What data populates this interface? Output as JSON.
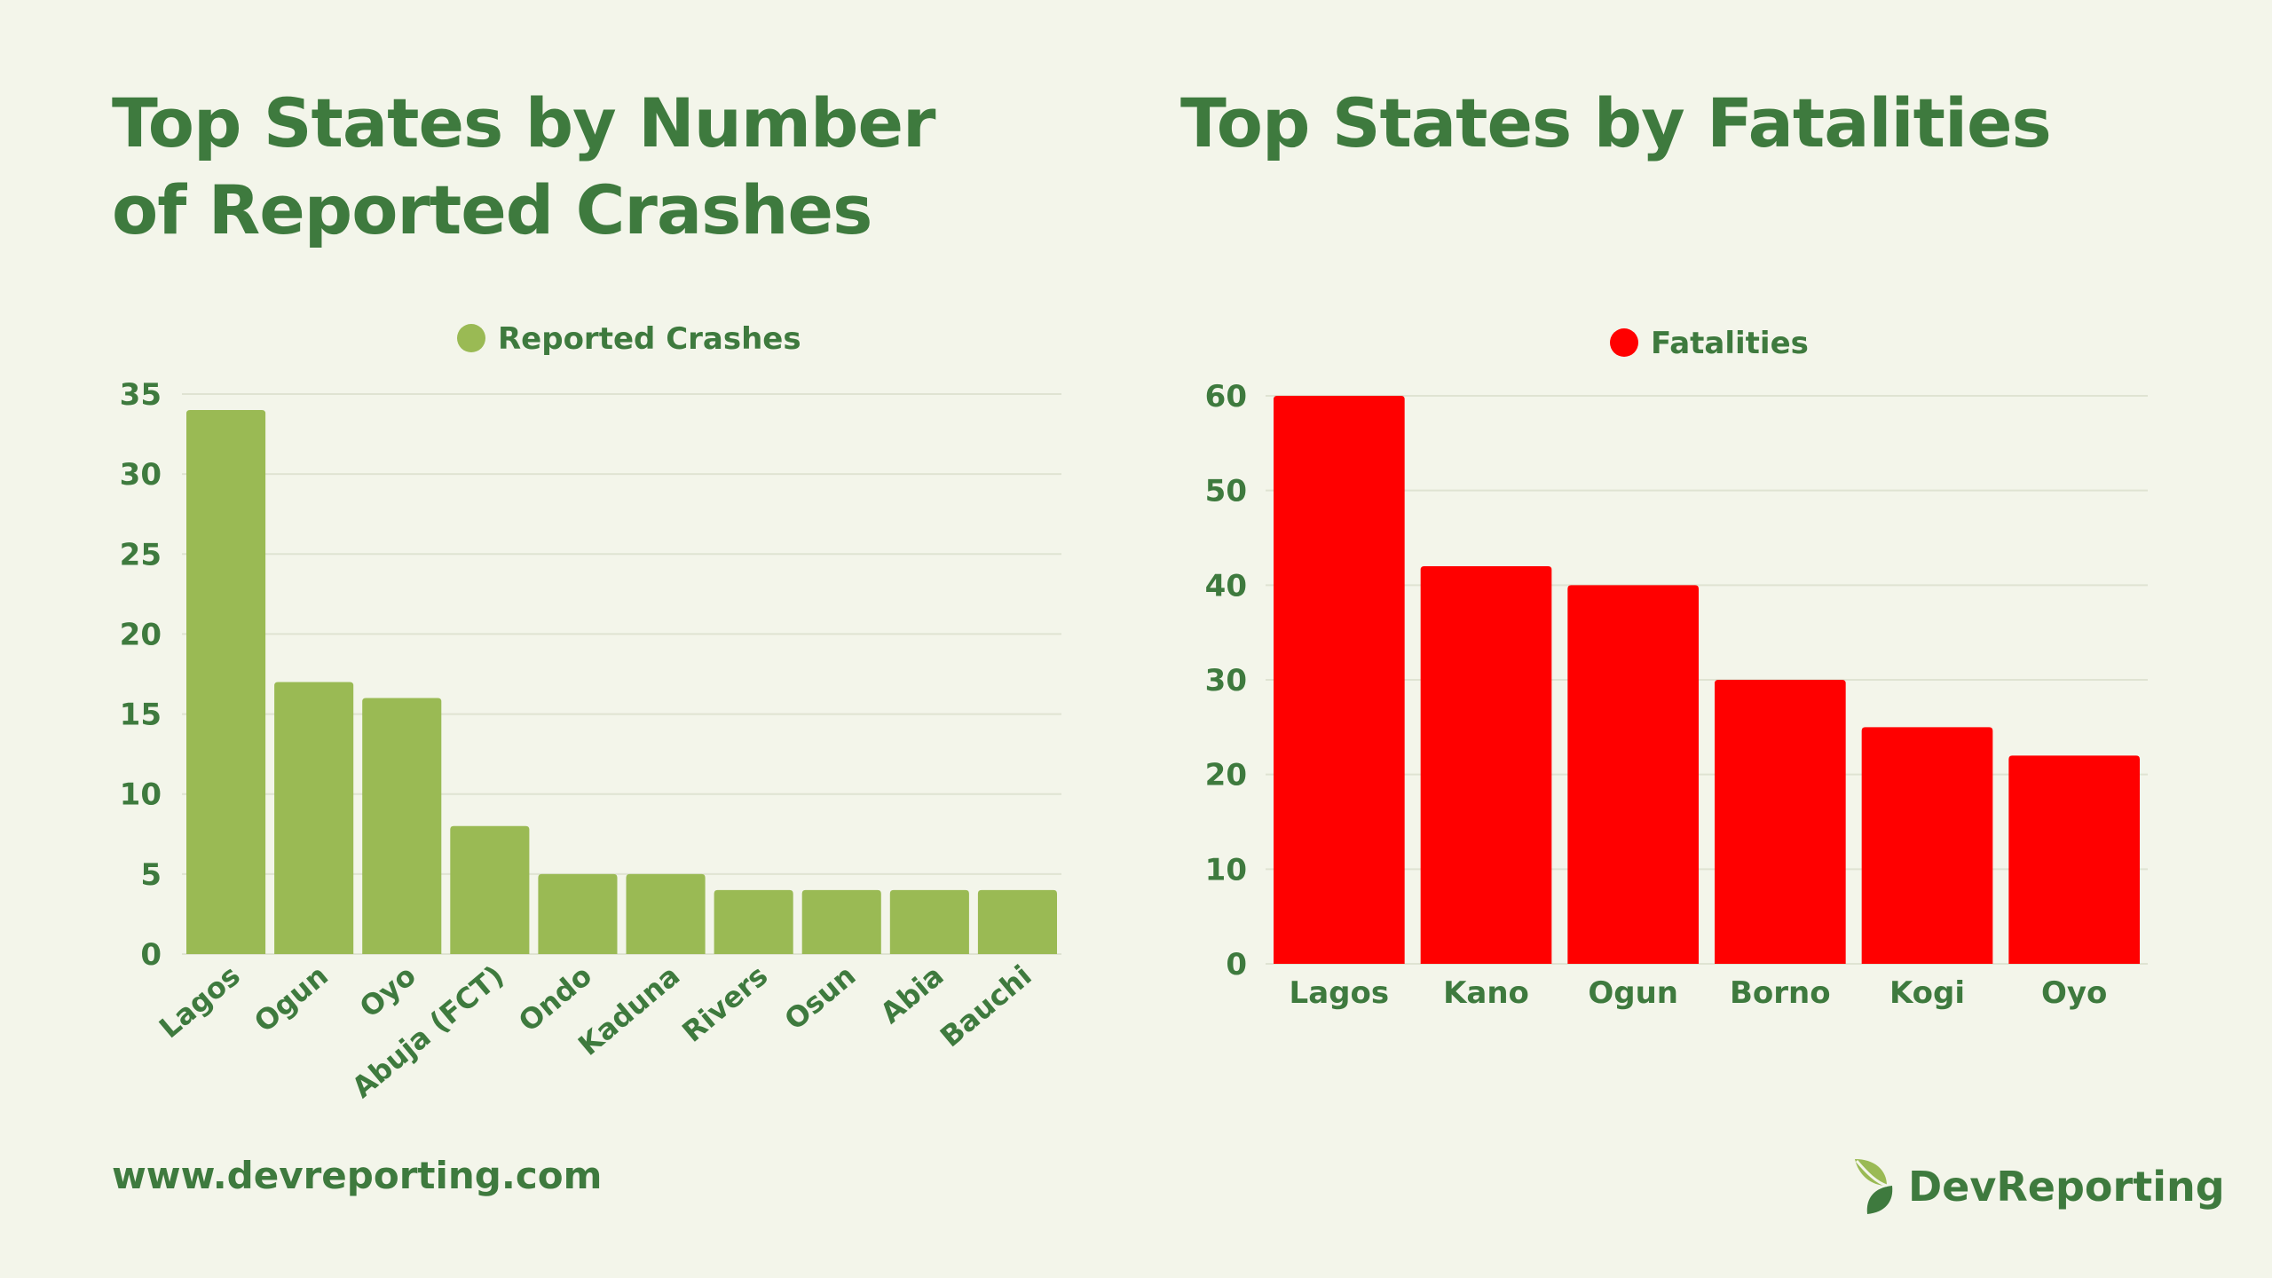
{
  "colors": {
    "background": "#f3f5ea",
    "text": "#3e7a3e",
    "crashes_bar": "#9aba54",
    "fatalities_bar": "#ff0000",
    "grid": "#dfe3d2"
  },
  "footer": {
    "url": "www.devreporting.com",
    "brand": "DevReporting",
    "brand_icon": "leaf-logo-icon"
  },
  "chart_data": [
    {
      "type": "bar",
      "title": "Top States by Number of Reported Crashes",
      "categories": [
        "Lagos",
        "Ogun",
        "Oyo",
        "Abuja (FCT)",
        "Ondo",
        "Kaduna",
        "Rivers",
        "Osun",
        "Abia",
        "Bauchi"
      ],
      "series": [
        {
          "name": "Reported Crashes",
          "values": [
            34,
            17,
            16,
            8,
            5,
            5,
            4,
            4,
            4,
            4
          ]
        }
      ],
      "ylim": [
        0,
        35
      ],
      "yticks": [
        0,
        5,
        10,
        15,
        20,
        25,
        30,
        35
      ],
      "grid": true,
      "legend": "top-center",
      "xlabel": "",
      "ylabel": "",
      "x_tick_rotation": "rotated"
    },
    {
      "type": "bar",
      "title": "Top States by Fatalities",
      "categories": [
        "Lagos",
        "Kano",
        "Ogun",
        "Borno",
        "Kogi",
        "Oyo"
      ],
      "series": [
        {
          "name": "Fatalities",
          "values": [
            60,
            42,
            40,
            30,
            25,
            22
          ]
        }
      ],
      "ylim": [
        0,
        60
      ],
      "yticks": [
        0,
        10,
        20,
        30,
        40,
        50,
        60
      ],
      "grid": true,
      "legend": "top-center",
      "xlabel": "",
      "ylabel": ""
    }
  ]
}
